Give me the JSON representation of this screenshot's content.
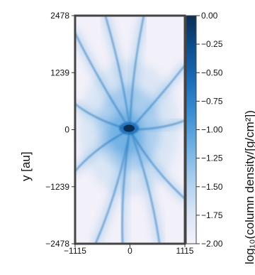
{
  "chart_data": {
    "type": "heatmap",
    "title": "",
    "xlabel": "",
    "ylabel": "y [au]",
    "colorbar_label": "log₁₀(column density/[g/cm²])",
    "xlim": [
      -1115,
      1115
    ],
    "ylim": [
      -2478,
      2478
    ],
    "clim": [
      -2.0,
      0.0
    ],
    "x_ticks": [
      -1115,
      0,
      1115
    ],
    "x_tick_labels": [
      "−1115",
      "0",
      "1115"
    ],
    "y_ticks": [
      2478,
      1239,
      0,
      -1239,
      -2478
    ],
    "y_tick_labels": [
      "2478",
      "1239",
      "0",
      "−1239",
      "−2478"
    ],
    "colorbar_ticks": [
      0.0,
      -0.25,
      -0.5,
      -0.75,
      -1.0,
      -1.25,
      -1.5,
      -1.75,
      -2.0
    ],
    "colorbar_tick_labels": [
      "0.00",
      "−0.25",
      "−0.50",
      "−0.75",
      "−1.00",
      "−1.25",
      "−1.50",
      "−1.75",
      "−2.00"
    ],
    "colormap": [
      "#f4f1fa",
      "#d8e4f4",
      "#a9cdee",
      "#6fb0e2",
      "#3a8fd3",
      "#1a6db8",
      "#0d4f8f",
      "#0a2f55"
    ],
    "grid": false,
    "features": {
      "dense_core": {
        "x": -20,
        "y": 30,
        "value": -0.05
      },
      "filaments_from_core": [
        {
          "from": [
            0,
            0
          ],
          "to": [
            -1115,
            2100
          ]
        },
        {
          "from": [
            0,
            0
          ],
          "to": [
            -500,
            2478
          ]
        },
        {
          "from": [
            0,
            0
          ],
          "to": [
            280,
            2478
          ]
        },
        {
          "from": [
            0,
            0
          ],
          "to": [
            1115,
            1400
          ]
        },
        {
          "from": [
            0,
            0
          ],
          "to": [
            -1115,
            560
          ]
        },
        {
          "from": [
            0,
            0
          ],
          "to": [
            1115,
            200
          ]
        },
        {
          "from": [
            0,
            0
          ],
          "to": [
            -1115,
            -900
          ]
        },
        {
          "from": [
            0,
            0
          ],
          "to": [
            -700,
            -2478
          ]
        },
        {
          "from": [
            0,
            0
          ],
          "to": [
            -150,
            -2478
          ]
        },
        {
          "from": [
            0,
            0
          ],
          "to": [
            600,
            -2478
          ]
        },
        {
          "from": [
            0,
            0
          ],
          "to": [
            1115,
            -1500
          ]
        }
      ]
    }
  }
}
